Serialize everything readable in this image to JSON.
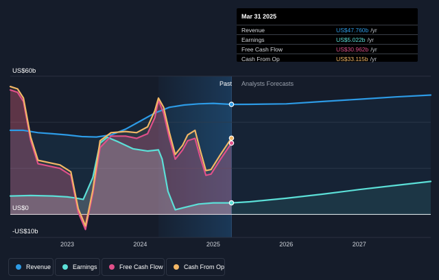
{
  "colors": {
    "background": "#151c2a",
    "revenue": "#2d9be6",
    "earnings": "#5ce0d8",
    "fcf": "#e0508a",
    "cfo": "#f2b766",
    "forecast_band": "#1b3a5a"
  },
  "tooltip": {
    "date": "Mar 31 2025",
    "rows": [
      {
        "label": "Revenue",
        "value": "US$47.760b",
        "unit": "/yr",
        "color": "#2d9be6"
      },
      {
        "label": "Earnings",
        "value": "US$5.022b",
        "unit": "/yr",
        "color": "#5ce0d8"
      },
      {
        "label": "Free Cash Flow",
        "value": "US$30.962b",
        "unit": "/yr",
        "color": "#e0508a"
      },
      {
        "label": "Cash From Op",
        "value": "US$33.115b",
        "unit": "/yr",
        "color": "#f2b766"
      }
    ]
  },
  "legend": [
    {
      "label": "Revenue",
      "icon": "revenue-dot-icon",
      "color": "#2d9be6"
    },
    {
      "label": "Earnings",
      "icon": "earnings-dot-icon",
      "color": "#5ce0d8"
    },
    {
      "label": "Free Cash Flow",
      "icon": "fcf-dot-icon",
      "color": "#e0508a"
    },
    {
      "label": "Cash From Op",
      "icon": "cfo-dot-icon",
      "color": "#f2b766"
    }
  ],
  "chart_data": {
    "type": "line",
    "title": "",
    "y_unit_labels": {
      "top": "US$60b",
      "zero": "US$0",
      "bottom": "-US$10b"
    },
    "ylim": [
      -10,
      60
    ],
    "xlim": [
      2022.22,
      2027.98
    ],
    "x_ticks": [
      "2023",
      "2024",
      "2025",
      "2026",
      "2027"
    ],
    "x_tick_values": [
      2023.0,
      2024.0,
      2025.0,
      2026.0,
      2027.0
    ],
    "region_labels": {
      "past": "Past",
      "forecast": "Analysts Forecasts"
    },
    "past_region_start": 2024.25,
    "present": 2025.25,
    "grid": true,
    "series": [
      {
        "name": "Revenue",
        "color": "#2d9be6",
        "points": [
          [
            2022.22,
            36.5
          ],
          [
            2022.4,
            36.5
          ],
          [
            2022.6,
            35.5
          ],
          [
            2022.8,
            35.0
          ],
          [
            2023.0,
            34.5
          ],
          [
            2023.2,
            33.8
          ],
          [
            2023.4,
            33.6
          ],
          [
            2023.6,
            34.5
          ],
          [
            2023.8,
            37.0
          ],
          [
            2024.0,
            40.5
          ],
          [
            2024.2,
            44.0
          ],
          [
            2024.4,
            46.5
          ],
          [
            2024.6,
            47.5
          ],
          [
            2024.8,
            48.0
          ],
          [
            2025.0,
            48.2
          ],
          [
            2025.25,
            47.76
          ]
        ]
      },
      {
        "name": "Revenue (forecast)",
        "color": "#2d9be6",
        "points": [
          [
            2025.25,
            47.76
          ],
          [
            2025.5,
            47.8
          ],
          [
            2026.0,
            48.0
          ],
          [
            2026.5,
            49.0
          ],
          [
            2027.0,
            50.0
          ],
          [
            2027.5,
            51.0
          ],
          [
            2027.98,
            51.8
          ]
        ]
      },
      {
        "name": "Earnings",
        "color": "#5ce0d8",
        "points": [
          [
            2022.22,
            8.0
          ],
          [
            2022.5,
            8.2
          ],
          [
            2022.8,
            8.0
          ],
          [
            2023.0,
            7.6
          ],
          [
            2023.1,
            7.2
          ],
          [
            2023.22,
            6.5
          ],
          [
            2023.35,
            16.0
          ],
          [
            2023.45,
            31.0
          ],
          [
            2023.55,
            33.5
          ],
          [
            2023.7,
            31.5
          ],
          [
            2023.9,
            28.5
          ],
          [
            2024.1,
            27.5
          ],
          [
            2024.25,
            28.0
          ],
          [
            2024.3,
            24.0
          ],
          [
            2024.38,
            10.0
          ],
          [
            2024.48,
            2.0
          ],
          [
            2024.6,
            3.0
          ],
          [
            2024.8,
            4.5
          ],
          [
            2025.0,
            5.0
          ],
          [
            2025.25,
            5.02
          ]
        ]
      },
      {
        "name": "Earnings (forecast)",
        "color": "#5ce0d8",
        "points": [
          [
            2025.25,
            5.02
          ],
          [
            2025.5,
            5.5
          ],
          [
            2026.0,
            7.0
          ],
          [
            2026.5,
            8.8
          ],
          [
            2027.0,
            10.8
          ],
          [
            2027.5,
            12.6
          ],
          [
            2027.98,
            14.3
          ]
        ]
      },
      {
        "name": "Free Cash Flow",
        "color": "#e0508a",
        "points": [
          [
            2022.22,
            54.0
          ],
          [
            2022.32,
            53.0
          ],
          [
            2022.4,
            49.0
          ],
          [
            2022.5,
            32.0
          ],
          [
            2022.6,
            22.0
          ],
          [
            2022.75,
            21.0
          ],
          [
            2022.9,
            20.0
          ],
          [
            2023.05,
            17.0
          ],
          [
            2023.15,
            1.0
          ],
          [
            2023.25,
            -6.5
          ],
          [
            2023.35,
            9.0
          ],
          [
            2023.45,
            29.0
          ],
          [
            2023.6,
            34.0
          ],
          [
            2023.8,
            34.0
          ],
          [
            2023.95,
            33.0
          ],
          [
            2024.1,
            35.0
          ],
          [
            2024.2,
            42.0
          ],
          [
            2024.25,
            49.5
          ],
          [
            2024.32,
            44.0
          ],
          [
            2024.4,
            33.0
          ],
          [
            2024.48,
            24.0
          ],
          [
            2024.58,
            28.0
          ],
          [
            2024.65,
            32.0
          ],
          [
            2024.75,
            33.0
          ],
          [
            2024.82,
            25.0
          ],
          [
            2024.9,
            17.0
          ],
          [
            2024.97,
            17.5
          ],
          [
            2025.1,
            24.0
          ],
          [
            2025.25,
            30.96
          ]
        ]
      },
      {
        "name": "Cash From Op",
        "color": "#f2b766",
        "points": [
          [
            2022.22,
            55.5
          ],
          [
            2022.32,
            54.5
          ],
          [
            2022.4,
            50.5
          ],
          [
            2022.5,
            33.5
          ],
          [
            2022.6,
            23.5
          ],
          [
            2022.75,
            22.5
          ],
          [
            2022.9,
            21.5
          ],
          [
            2023.05,
            18.5
          ],
          [
            2023.15,
            2.5
          ],
          [
            2023.25,
            -5.0
          ],
          [
            2023.35,
            10.5
          ],
          [
            2023.45,
            32.0
          ],
          [
            2023.6,
            35.5
          ],
          [
            2023.8,
            36.0
          ],
          [
            2023.95,
            35.5
          ],
          [
            2024.1,
            38.0
          ],
          [
            2024.2,
            45.0
          ],
          [
            2024.25,
            50.5
          ],
          [
            2024.32,
            46.5
          ],
          [
            2024.4,
            35.5
          ],
          [
            2024.48,
            26.0
          ],
          [
            2024.58,
            30.0
          ],
          [
            2024.65,
            34.5
          ],
          [
            2024.75,
            36.5
          ],
          [
            2024.82,
            28.0
          ],
          [
            2024.9,
            19.0
          ],
          [
            2024.97,
            19.5
          ],
          [
            2025.1,
            26.0
          ],
          [
            2025.25,
            33.12
          ]
        ]
      }
    ]
  }
}
